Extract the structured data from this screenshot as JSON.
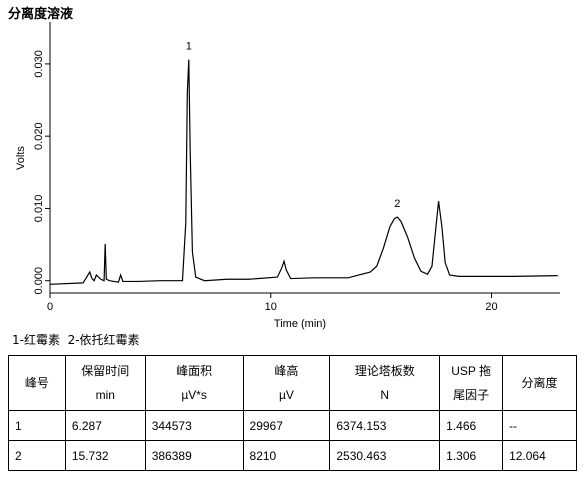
{
  "title": "分离度溶液",
  "chart_data": {
    "type": "line",
    "x_label": "Time (min)",
    "y_label": "Volts",
    "xlim": [
      0,
      23.1
    ],
    "xticks": [
      0,
      10,
      20
    ],
    "ylim": [
      -0.0017,
      0.0358
    ],
    "yticks": [
      {
        "value": 0,
        "label": "0.000"
      },
      {
        "value": 0.01,
        "label": "0.010"
      },
      {
        "value": 0.02,
        "label": "0.020"
      },
      {
        "value": 0.03,
        "label": "0.030"
      }
    ],
    "x": [
      0,
      1.5,
      1.8,
      1.9,
      2.0,
      2.1,
      2.3,
      2.45,
      2.5,
      2.55,
      2.7,
      3.1,
      3.2,
      3.3,
      4.0,
      5.0,
      6.0,
      6.15,
      6.22,
      6.287,
      6.35,
      6.45,
      6.6,
      7.0,
      8.0,
      9.0,
      10.3,
      10.5,
      10.6,
      10.7,
      10.9,
      12.0,
      13.5,
      14.0,
      14.5,
      14.8,
      15.1,
      15.4,
      15.6,
      15.732,
      15.9,
      16.2,
      16.5,
      16.8,
      17.1,
      17.3,
      17.45,
      17.6,
      17.75,
      17.9,
      18.1,
      18.5,
      19.5,
      21,
      23
    ],
    "series": [
      {
        "color": "#000000",
        "values": [
          -0.0005,
          -0.0003,
          0.0012,
          0.0003,
          0.0,
          0.0008,
          0.0002,
          0.0,
          0.0051,
          0.0002,
          0.0,
          -0.0002,
          0.0008,
          -0.0001,
          -0.0001,
          0.0,
          0.0,
          0.008,
          0.026,
          0.0306,
          0.018,
          0.004,
          0.0005,
          0.0,
          0.0002,
          0.0002,
          0.0005,
          0.0018,
          0.0027,
          0.0015,
          0.0003,
          0.0004,
          0.0004,
          0.0008,
          0.0012,
          0.002,
          0.0045,
          0.0075,
          0.0086,
          0.0088,
          0.0082,
          0.006,
          0.0032,
          0.0013,
          0.0009,
          0.002,
          0.0065,
          0.011,
          0.0075,
          0.0025,
          0.0008,
          0.0006,
          0.0006,
          0.0006,
          0.0007
        ]
      }
    ],
    "annotations": [
      {
        "text": "1",
        "x": 6.287
      },
      {
        "text": "2",
        "x": 15.732
      }
    ]
  },
  "legend_note": "1-红霉素  2-依托红霉素",
  "table": {
    "header": [
      [
        "峰号"
      ],
      [
        "保留时间",
        "min"
      ],
      [
        "峰面积",
        "µV*s"
      ],
      [
        "峰高",
        "µV"
      ],
      [
        "理论塔板数",
        "N"
      ],
      [
        "USP 拖",
        "尾因子"
      ],
      [
        "分离度"
      ]
    ],
    "rows": [
      [
        "1",
        "6.287",
        "344573",
        "29967",
        "6374.153",
        "1.466",
        "--"
      ],
      [
        "2",
        "15.732",
        "386389",
        "8210",
        "2530.463",
        "1.306",
        "12.064"
      ]
    ]
  }
}
